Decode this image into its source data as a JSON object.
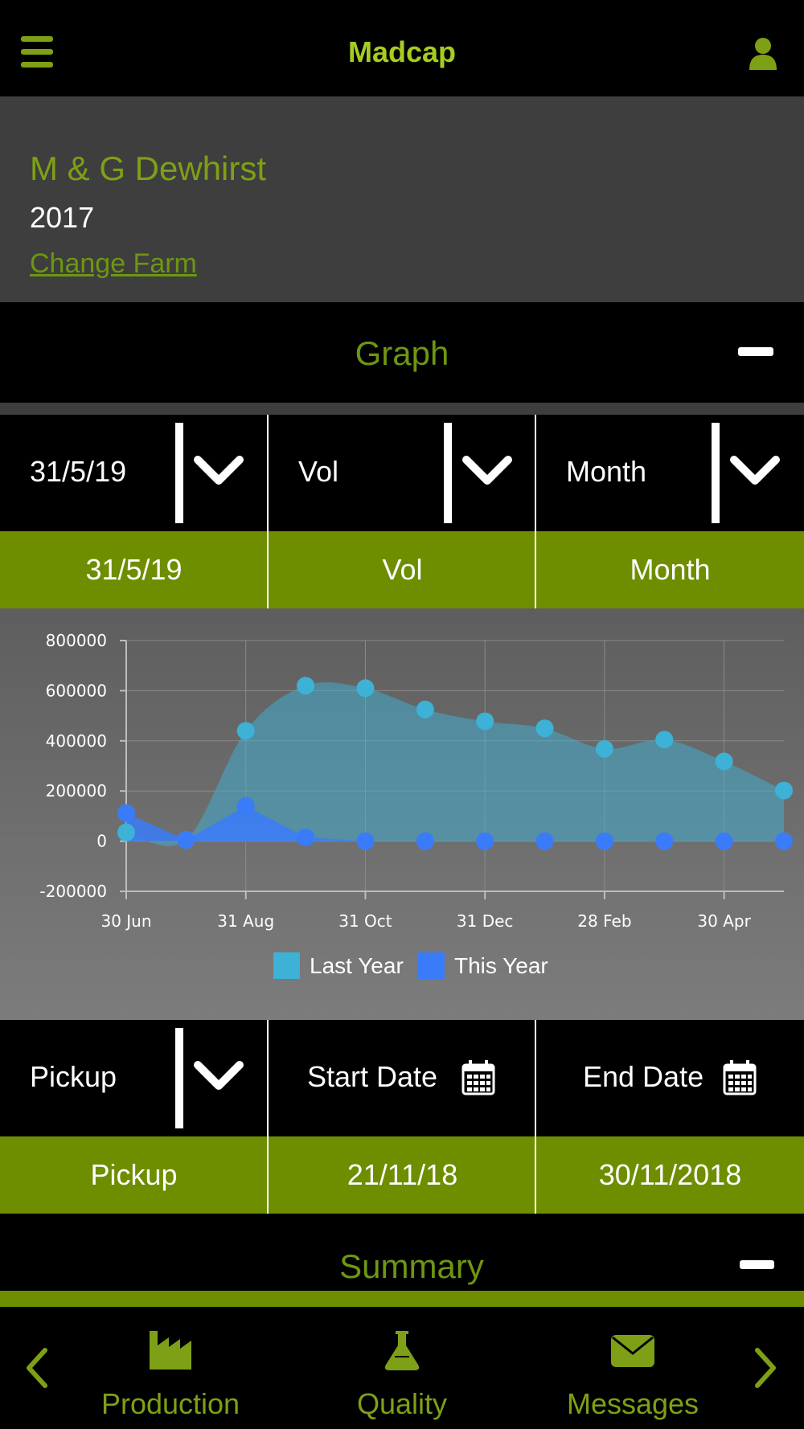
{
  "header": {
    "title": "Madcap"
  },
  "farm": {
    "name": "M & G Dewhirst",
    "year": "2017",
    "change_label": "Change Farm"
  },
  "graph_section": {
    "title": "Graph"
  },
  "selectors": [
    {
      "label": "31/5/19",
      "value": "31/5/19"
    },
    {
      "label": "Vol",
      "value": "Vol"
    },
    {
      "label": "Month",
      "value": "Month"
    }
  ],
  "filters": {
    "pickup": {
      "label": "Pickup",
      "value": "Pickup"
    },
    "start_date": {
      "label": "Start Date",
      "value": "21/11/18"
    },
    "end_date": {
      "label": "End Date",
      "value": "30/11/2018"
    }
  },
  "summary_section": {
    "title": "Summary"
  },
  "nav": {
    "production": "Production",
    "quality": "Quality",
    "messages": "Messages"
  },
  "colors": {
    "accent": "#7ea016",
    "green_bar": "#6e8e00",
    "last_year": "#3db1d6",
    "this_year": "#3a7bfa"
  },
  "chart_data": {
    "type": "area",
    "x": [
      "30 Jun",
      "31 Jul",
      "31 Aug",
      "30 Sep",
      "31 Oct",
      "30 Nov",
      "31 Dec",
      "31 Jan",
      "28 Feb",
      "31 Mar",
      "30 Apr",
      "31 May"
    ],
    "xticks": [
      "30 Jun",
      "31 Aug",
      "31 Oct",
      "31 Dec",
      "28 Feb",
      "30 Apr"
    ],
    "yticks": [
      "800000",
      "600000",
      "400000",
      "200000",
      "0",
      "-200000"
    ],
    "ylim": [
      -200000,
      800000
    ],
    "series": [
      {
        "name": "Last Year",
        "values": [
          35000,
          5000,
          440000,
          620000,
          610000,
          525000,
          478000,
          450000,
          368000,
          405000,
          318000,
          202000
        ]
      },
      {
        "name": "This Year",
        "values": [
          112000,
          5000,
          140000,
          15000,
          0,
          0,
          0,
          0,
          0,
          0,
          0,
          0
        ]
      }
    ],
    "legend": "bottom",
    "grid": true
  }
}
